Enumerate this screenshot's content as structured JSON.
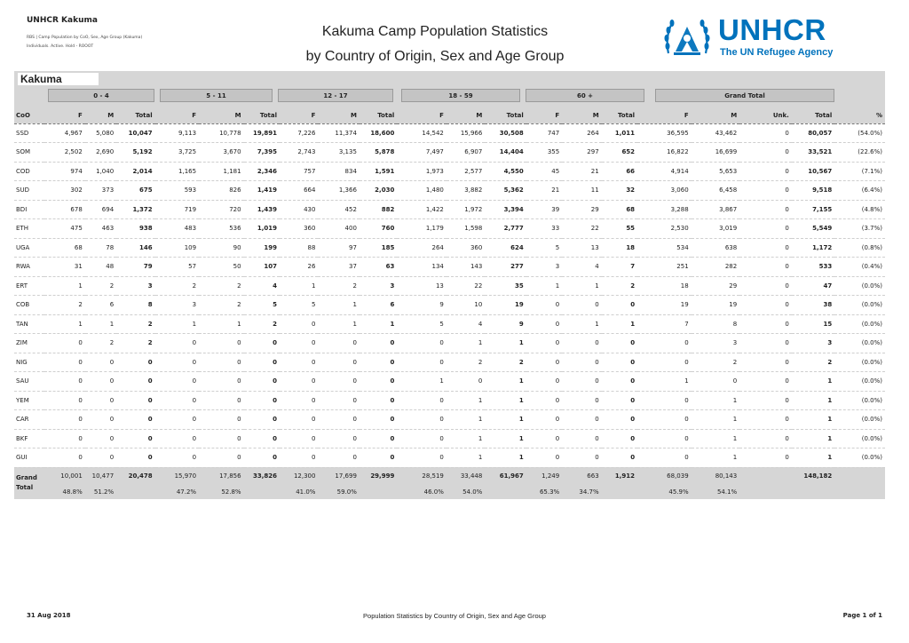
{
  "header": {
    "org": "UNHCR Kakuma",
    "subtitle_line1": "RBS | Camp Population by CoO, Sex, Age Group (Kakuma)",
    "subtitle_line2": "Individuals. Active. Hold - ROOOT",
    "title_line1": "Kakuma Camp Population Statistics",
    "title_line2": "by Country of Origin, Sex and Age Group",
    "logo_word": "UNHCR",
    "logo_tagline": "The UN Refugee Agency"
  },
  "camp": "Kakuma",
  "age_groups": [
    "0 - 4",
    "5 - 11",
    "12 - 17",
    "18 - 59",
    "60 +",
    "Grand Total"
  ],
  "columns": {
    "coo": "CoO",
    "f": "F",
    "m": "M",
    "total": "Total",
    "unk": "Unk.",
    "pct": "%"
  },
  "rows": [
    {
      "coo": "SSD",
      "v": [
        "4,967",
        "5,080",
        "10,047",
        "9,113",
        "10,778",
        "19,891",
        "7,226",
        "11,374",
        "18,600",
        "14,542",
        "15,966",
        "30,508",
        "747",
        "264",
        "1,011",
        "36,595",
        "43,462",
        "0",
        "80,057",
        "(54.0%)"
      ]
    },
    {
      "coo": "SOM",
      "v": [
        "2,502",
        "2,690",
        "5,192",
        "3,725",
        "3,670",
        "7,395",
        "2,743",
        "3,135",
        "5,878",
        "7,497",
        "6,907",
        "14,404",
        "355",
        "297",
        "652",
        "16,822",
        "16,699",
        "0",
        "33,521",
        "(22.6%)"
      ]
    },
    {
      "coo": "COD",
      "v": [
        "974",
        "1,040",
        "2,014",
        "1,165",
        "1,181",
        "2,346",
        "757",
        "834",
        "1,591",
        "1,973",
        "2,577",
        "4,550",
        "45",
        "21",
        "66",
        "4,914",
        "5,653",
        "0",
        "10,567",
        "(7.1%)"
      ]
    },
    {
      "coo": "SUD",
      "v": [
        "302",
        "373",
        "675",
        "593",
        "826",
        "1,419",
        "664",
        "1,366",
        "2,030",
        "1,480",
        "3,882",
        "5,362",
        "21",
        "11",
        "32",
        "3,060",
        "6,458",
        "0",
        "9,518",
        "(6.4%)"
      ]
    },
    {
      "coo": "BDI",
      "v": [
        "678",
        "694",
        "1,372",
        "719",
        "720",
        "1,439",
        "430",
        "452",
        "882",
        "1,422",
        "1,972",
        "3,394",
        "39",
        "29",
        "68",
        "3,288",
        "3,867",
        "0",
        "7,155",
        "(4.8%)"
      ]
    },
    {
      "coo": "ETH",
      "v": [
        "475",
        "463",
        "938",
        "483",
        "536",
        "1,019",
        "360",
        "400",
        "760",
        "1,179",
        "1,598",
        "2,777",
        "33",
        "22",
        "55",
        "2,530",
        "3,019",
        "0",
        "5,549",
        "(3.7%)"
      ]
    },
    {
      "coo": "UGA",
      "v": [
        "68",
        "78",
        "146",
        "109",
        "90",
        "199",
        "88",
        "97",
        "185",
        "264",
        "360",
        "624",
        "5",
        "13",
        "18",
        "534",
        "638",
        "0",
        "1,172",
        "(0.8%)"
      ]
    },
    {
      "coo": "RWA",
      "v": [
        "31",
        "48",
        "79",
        "57",
        "50",
        "107",
        "26",
        "37",
        "63",
        "134",
        "143",
        "277",
        "3",
        "4",
        "7",
        "251",
        "282",
        "0",
        "533",
        "(0.4%)"
      ]
    },
    {
      "coo": "ERT",
      "v": [
        "1",
        "2",
        "3",
        "2",
        "2",
        "4",
        "1",
        "2",
        "3",
        "13",
        "22",
        "35",
        "1",
        "1",
        "2",
        "18",
        "29",
        "0",
        "47",
        "(0.0%)"
      ]
    },
    {
      "coo": "COB",
      "v": [
        "2",
        "6",
        "8",
        "3",
        "2",
        "5",
        "5",
        "1",
        "6",
        "9",
        "10",
        "19",
        "0",
        "0",
        "0",
        "19",
        "19",
        "0",
        "38",
        "(0.0%)"
      ]
    },
    {
      "coo": "TAN",
      "v": [
        "1",
        "1",
        "2",
        "1",
        "1",
        "2",
        "0",
        "1",
        "1",
        "5",
        "4",
        "9",
        "0",
        "1",
        "1",
        "7",
        "8",
        "0",
        "15",
        "(0.0%)"
      ]
    },
    {
      "coo": "ZIM",
      "v": [
        "0",
        "2",
        "2",
        "0",
        "0",
        "0",
        "0",
        "0",
        "0",
        "0",
        "1",
        "1",
        "0",
        "0",
        "0",
        "0",
        "3",
        "0",
        "3",
        "(0.0%)"
      ]
    },
    {
      "coo": "NIG",
      "v": [
        "0",
        "0",
        "0",
        "0",
        "0",
        "0",
        "0",
        "0",
        "0",
        "0",
        "2",
        "2",
        "0",
        "0",
        "0",
        "0",
        "2",
        "0",
        "2",
        "(0.0%)"
      ]
    },
    {
      "coo": "SAU",
      "v": [
        "0",
        "0",
        "0",
        "0",
        "0",
        "0",
        "0",
        "0",
        "0",
        "1",
        "0",
        "1",
        "0",
        "0",
        "0",
        "1",
        "0",
        "0",
        "1",
        "(0.0%)"
      ]
    },
    {
      "coo": "YEM",
      "v": [
        "0",
        "0",
        "0",
        "0",
        "0",
        "0",
        "0",
        "0",
        "0",
        "0",
        "1",
        "1",
        "0",
        "0",
        "0",
        "0",
        "1",
        "0",
        "1",
        "(0.0%)"
      ]
    },
    {
      "coo": "CAR",
      "v": [
        "0",
        "0",
        "0",
        "0",
        "0",
        "0",
        "0",
        "0",
        "0",
        "0",
        "1",
        "1",
        "0",
        "0",
        "0",
        "0",
        "1",
        "0",
        "1",
        "(0.0%)"
      ]
    },
    {
      "coo": "BKF",
      "v": [
        "0",
        "0",
        "0",
        "0",
        "0",
        "0",
        "0",
        "0",
        "0",
        "0",
        "1",
        "1",
        "0",
        "0",
        "0",
        "0",
        "1",
        "0",
        "1",
        "(0.0%)"
      ]
    },
    {
      "coo": "GUI",
      "v": [
        "0",
        "0",
        "0",
        "0",
        "0",
        "0",
        "0",
        "0",
        "0",
        "0",
        "1",
        "1",
        "0",
        "0",
        "0",
        "0",
        "1",
        "0",
        "1",
        "(0.0%)"
      ]
    }
  ],
  "grand_total": {
    "label_line1": "Grand",
    "label_line2": "Total",
    "values": [
      "10,001",
      "10,477",
      "20,478",
      "15,970",
      "17,856",
      "33,826",
      "12,300",
      "17,699",
      "29,999",
      "28,519",
      "33,448",
      "61,967",
      "1,249",
      "663",
      "1,912",
      "68,039",
      "80,143",
      "",
      "148,182",
      ""
    ],
    "percents": [
      "48.8%",
      "51.2%",
      "",
      "47.2%",
      "52.8%",
      "",
      "41.0%",
      "59.0%",
      "",
      "46.0%",
      "54.0%",
      "",
      "65.3%",
      "34.7%",
      "",
      "45.9%",
      "54.1%",
      "",
      "",
      ""
    ]
  },
  "footer": {
    "date": "31 Aug 2018",
    "center": "Population Statistics by Country of Origin, Sex and Age Group",
    "page": "Page 1 of 1"
  }
}
